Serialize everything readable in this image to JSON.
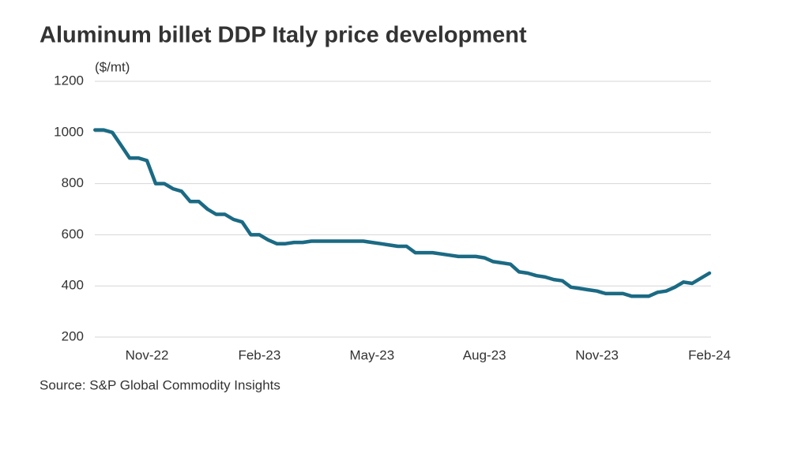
{
  "chart_data": {
    "type": "line",
    "title": "Aluminum billet DDP Italy price development",
    "unit_label": "($/mt)",
    "source": "Source: S&P Global Commodity Insights",
    "categories": [
      null,
      null,
      null,
      null,
      null,
      null,
      "Nov-22",
      null,
      null,
      null,
      null,
      null,
      null,
      null,
      null,
      null,
      null,
      null,
      null,
      "Feb-23",
      null,
      null,
      null,
      null,
      null,
      null,
      null,
      null,
      null,
      null,
      null,
      null,
      "May-23",
      null,
      null,
      null,
      null,
      null,
      null,
      null,
      null,
      null,
      null,
      null,
      null,
      "Aug-23",
      null,
      null,
      null,
      null,
      null,
      null,
      null,
      null,
      null,
      null,
      null,
      null,
      "Nov-23",
      null,
      null,
      null,
      null,
      null,
      null,
      null,
      null,
      null,
      null,
      null,
      null,
      "Feb-24"
    ],
    "series": [
      {
        "name": "Aluminum billet DDP Italy",
        "color": "#1b6a84",
        "values": [
          1010,
          1010,
          1000,
          950,
          900,
          900,
          890,
          800,
          800,
          780,
          770,
          730,
          730,
          700,
          680,
          680,
          660,
          650,
          600,
          600,
          580,
          565,
          565,
          570,
          570,
          575,
          575,
          575,
          575,
          575,
          575,
          575,
          570,
          565,
          560,
          555,
          555,
          530,
          530,
          530,
          525,
          520,
          515,
          515,
          515,
          510,
          495,
          490,
          485,
          455,
          450,
          440,
          435,
          425,
          420,
          395,
          390,
          385,
          380,
          370,
          370,
          370,
          360,
          360,
          360,
          375,
          380,
          395,
          415,
          410,
          430,
          450
        ]
      }
    ],
    "ylim": [
      200,
      1200
    ],
    "yticks": [
      200,
      400,
      600,
      800,
      1000,
      1200
    ],
    "grid": true
  }
}
